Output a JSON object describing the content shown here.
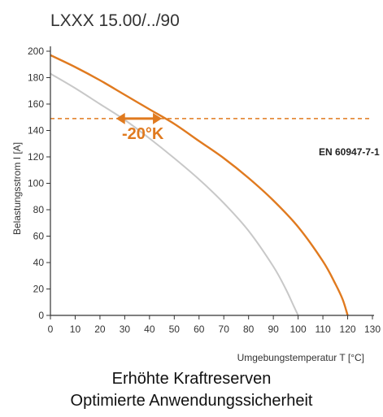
{
  "chart_data": {
    "type": "line",
    "title": "LXXX 15.00/../90",
    "xlabel": "Umgebungstemperatur T [°C]",
    "ylabel": "Belastungsstrom I [A]",
    "xlim": [
      0,
      130
    ],
    "ylim": [
      0,
      200
    ],
    "x_ticks": [
      "0",
      "10",
      "20",
      "30",
      "40",
      "50",
      "60",
      "70",
      "80",
      "90",
      "100",
      "110",
      "120",
      "130"
    ],
    "y_ticks": [
      "0",
      "20",
      "40",
      "60",
      "80",
      "100",
      "120",
      "140",
      "160",
      "180",
      "200"
    ],
    "standard": "EN 60947-7-1",
    "annotation": "-20°K",
    "reference_current": 149,
    "colors": {
      "accent": "#e07a1f",
      "reference": "#c8c8c8",
      "axis": "#333333"
    },
    "series": [
      {
        "x": [
          0,
          10,
          20,
          30,
          40,
          50,
          60,
          70,
          80,
          90,
          100,
          110,
          115,
          118,
          120
        ],
        "y": [
          197,
          188,
          178,
          167,
          156,
          145,
          132,
          119,
          104,
          87,
          67,
          41,
          24,
          12,
          0
        ],
        "color": "#e07a1f"
      },
      {
        "x": [
          0,
          10,
          20,
          30,
          40,
          50,
          60,
          70,
          80,
          90,
          95,
          98,
          100
        ],
        "y": [
          183,
          172,
          160,
          148,
          134,
          119,
          103,
          85,
          64,
          37,
          20,
          8,
          0
        ],
        "color": "#c8c8c8"
      }
    ]
  },
  "captions": {
    "line1": "Erhöhte Kraftreserven",
    "line2": "Optimierte Anwendungssicherheit"
  }
}
